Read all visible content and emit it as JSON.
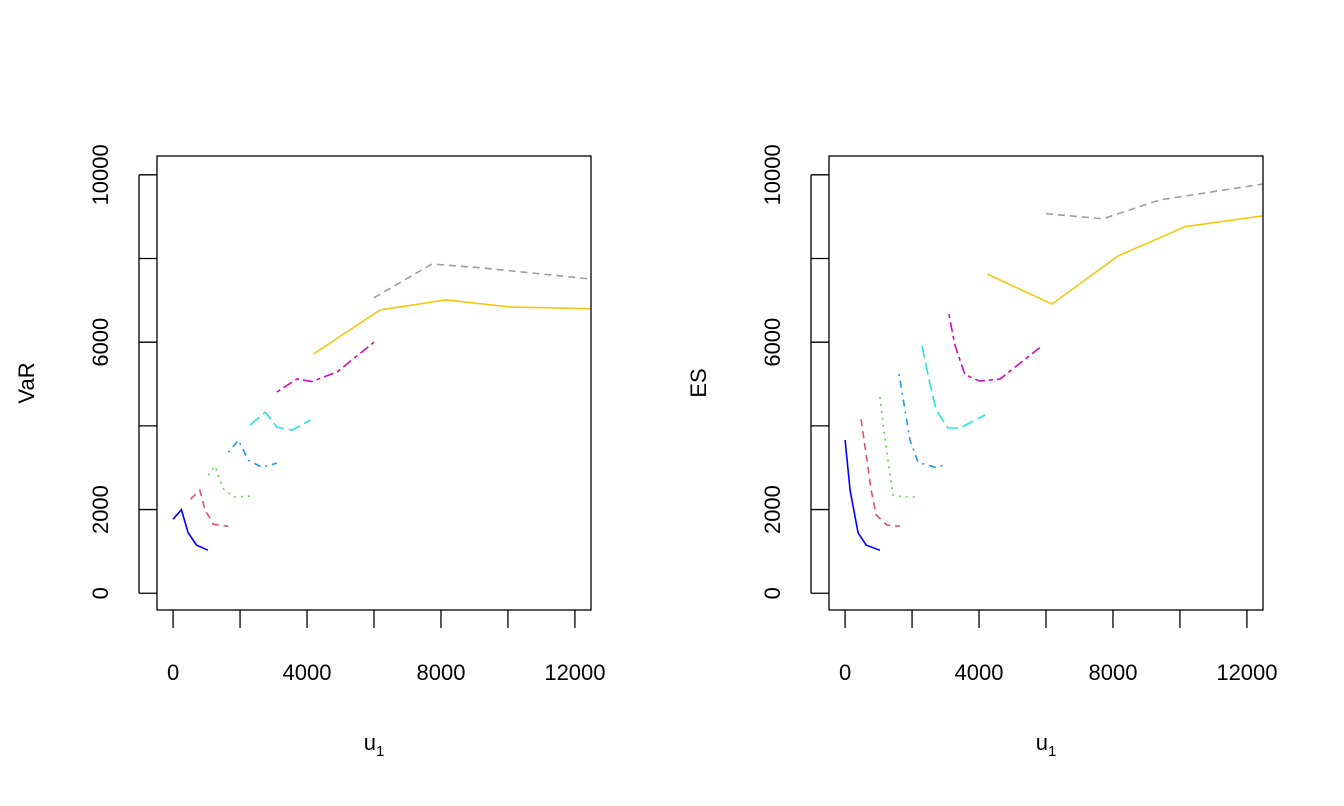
{
  "chart_data": [
    {
      "type": "line",
      "title": "",
      "xlabel": "u",
      "xlabel_sub": "1",
      "ylabel": "VaR",
      "xlim": [
        -480,
        12480
      ],
      "ylim": [
        -400,
        10450
      ],
      "xticks": [
        0,
        2000,
        4000,
        6000,
        8000,
        10000,
        12000
      ],
      "xtick_labels": [
        "0",
        "",
        "4000",
        "",
        "8000",
        "",
        "12000"
      ],
      "yticks": [
        0,
        2000,
        4000,
        6000,
        8000,
        10000
      ],
      "ytick_labels": [
        "0",
        "2000",
        "",
        "6000",
        "",
        "10000"
      ],
      "grid": false,
      "series": [
        {
          "color": "#0000FF",
          "dash": "solid",
          "points": [
            [
              0,
              1770
            ],
            [
              250,
              2000
            ],
            [
              450,
              1450
            ],
            [
              700,
              1150
            ],
            [
              1040,
              1030
            ]
          ]
        },
        {
          "color": "#DF536B",
          "dash": "dashed",
          "points": [
            [
              520,
              2250
            ],
            [
              800,
              2460
            ],
            [
              950,
              2000
            ],
            [
              1200,
              1650
            ],
            [
              1650,
              1600
            ]
          ]
        },
        {
          "color": "#61D04F",
          "dash": "dotted",
          "points": [
            [
              1050,
              2820
            ],
            [
              1250,
              3040
            ],
            [
              1500,
              2500
            ],
            [
              1800,
              2300
            ],
            [
              2300,
              2320
            ]
          ]
        },
        {
          "color": "#2297E6",
          "dash": "dotdash",
          "points": [
            [
              1650,
              3370
            ],
            [
              1950,
              3660
            ],
            [
              2250,
              3180
            ],
            [
              2650,
              3010
            ],
            [
              3100,
              3110
            ]
          ]
        },
        {
          "color": "#28E2E5",
          "dash": "longdash",
          "points": [
            [
              2300,
              4020
            ],
            [
              2750,
              4330
            ],
            [
              3100,
              3970
            ],
            [
              3550,
              3900
            ],
            [
              4100,
              4140
            ]
          ]
        },
        {
          "color": "#CD0BBC",
          "dash": "twodash",
          "points": [
            [
              3100,
              4810
            ],
            [
              3700,
              5120
            ],
            [
              4150,
              5060
            ],
            [
              4900,
              5290
            ],
            [
              6000,
              6000
            ]
          ]
        },
        {
          "color": "#F5C710",
          "dash": "solid",
          "points": [
            [
              4200,
              5720
            ],
            [
              6180,
              6770
            ],
            [
              8150,
              7010
            ],
            [
              10120,
              6840
            ],
            [
              12480,
              6800
            ]
          ]
        },
        {
          "color": "#9E9E9E",
          "dash": "dashed",
          "points": [
            [
              6000,
              7060
            ],
            [
              7730,
              7870
            ],
            [
              9160,
              7780
            ],
            [
              12480,
              7510
            ]
          ]
        }
      ]
    },
    {
      "type": "line",
      "title": "",
      "xlabel": "u",
      "xlabel_sub": "1",
      "ylabel": "ES",
      "xlim": [
        -480,
        12480
      ],
      "ylim": [
        -400,
        10450
      ],
      "xticks": [
        0,
        2000,
        4000,
        6000,
        8000,
        10000,
        12000
      ],
      "xtick_labels": [
        "0",
        "",
        "4000",
        "",
        "8000",
        "",
        "12000"
      ],
      "yticks": [
        0,
        2000,
        4000,
        6000,
        8000,
        10000
      ],
      "ytick_labels": [
        "0",
        "2000",
        "",
        "6000",
        "",
        "10000"
      ],
      "grid": false,
      "series": [
        {
          "color": "#0000FF",
          "dash": "solid",
          "points": [
            [
              0,
              3660
            ],
            [
              150,
              2460
            ],
            [
              390,
              1440
            ],
            [
              630,
              1150
            ],
            [
              1040,
              1030
            ]
          ]
        },
        {
          "color": "#DF536B",
          "dash": "dashed",
          "points": [
            [
              480,
              4160
            ],
            [
              630,
              3300
            ],
            [
              780,
              2460
            ],
            [
              930,
              1870
            ],
            [
              1250,
              1630
            ],
            [
              1640,
              1600
            ]
          ]
        },
        {
          "color": "#61D04F",
          "dash": "dotted",
          "points": [
            [
              1040,
              4690
            ],
            [
              1160,
              3900
            ],
            [
              1280,
              3180
            ],
            [
              1430,
              2340
            ],
            [
              1790,
              2300
            ],
            [
              2180,
              2300
            ]
          ]
        },
        {
          "color": "#2297E6",
          "dash": "dotdash",
          "points": [
            [
              1610,
              5240
            ],
            [
              1790,
              4380
            ],
            [
              1940,
              3660
            ],
            [
              2180,
              3130
            ],
            [
              2690,
              3010
            ],
            [
              2960,
              3060
            ]
          ]
        },
        {
          "color": "#28E2E5",
          "dash": "longdash",
          "points": [
            [
              2300,
              5910
            ],
            [
              2510,
              5100
            ],
            [
              2720,
              4380
            ],
            [
              3070,
              3950
            ],
            [
              3430,
              3950
            ],
            [
              4180,
              4260
            ]
          ]
        },
        {
          "color": "#CD0BBC",
          "dash": "twodash",
          "points": [
            [
              3100,
              6670
            ],
            [
              3280,
              5930
            ],
            [
              3580,
              5220
            ],
            [
              4030,
              5070
            ],
            [
              4630,
              5120
            ],
            [
              5910,
              5930
            ]
          ]
        },
        {
          "color": "#F5C710",
          "dash": "solid",
          "points": [
            [
              4240,
              7630
            ],
            [
              6180,
              6910
            ],
            [
              8150,
              8060
            ],
            [
              10150,
              8760
            ],
            [
              12480,
              9020
            ]
          ]
        },
        {
          "color": "#9E9E9E",
          "dash": "dashed",
          "points": [
            [
              6000,
              9070
            ],
            [
              7700,
              8950
            ],
            [
              9400,
              9400
            ],
            [
              12480,
              9780
            ]
          ]
        }
      ]
    }
  ]
}
